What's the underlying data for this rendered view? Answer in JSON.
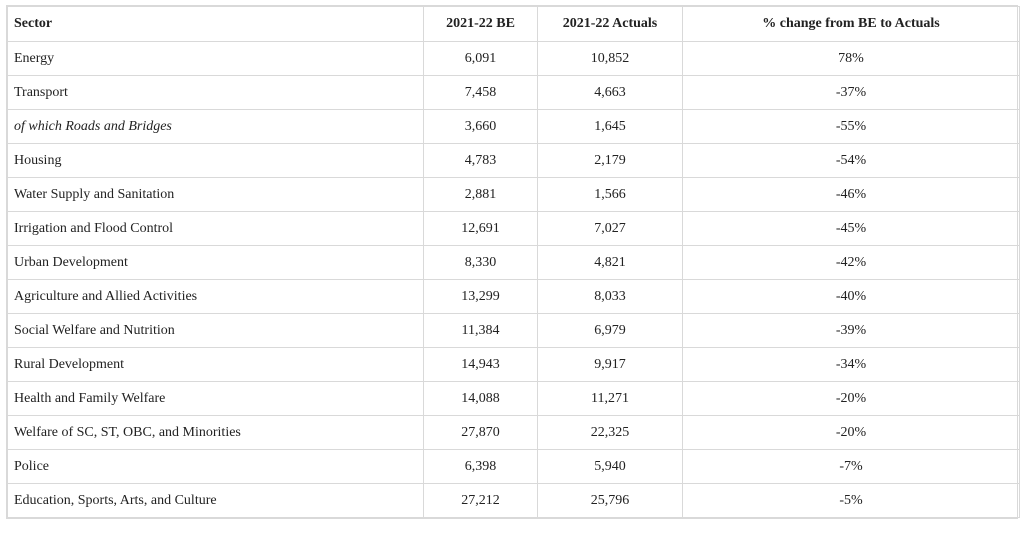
{
  "table": {
    "headers": [
      "Sector",
      "2021-22 BE",
      "2021-22 Actuals",
      "% change from BE to Actuals"
    ],
    "rows": [
      {
        "sector": "Energy",
        "be": "6,091",
        "actuals": "10,852",
        "change": "78%",
        "italic": false
      },
      {
        "sector": "Transport",
        "be": "7,458",
        "actuals": "4,663",
        "change": "-37%",
        "italic": false
      },
      {
        "sector": "of which Roads and Bridges",
        "be": "3,660",
        "actuals": "1,645",
        "change": "-55%",
        "italic": true
      },
      {
        "sector": "Housing",
        "be": "4,783",
        "actuals": "2,179",
        "change": "-54%",
        "italic": false
      },
      {
        "sector": "Water Supply and Sanitation",
        "be": "2,881",
        "actuals": "1,566",
        "change": "-46%",
        "italic": false
      },
      {
        "sector": "Irrigation and Flood Control",
        "be": "12,691",
        "actuals": "7,027",
        "change": "-45%",
        "italic": false
      },
      {
        "sector": "Urban Development",
        "be": "8,330",
        "actuals": "4,821",
        "change": "-42%",
        "italic": false
      },
      {
        "sector": "Agriculture and Allied Activities",
        "be": "13,299",
        "actuals": "8,033",
        "change": "-40%",
        "italic": false
      },
      {
        "sector": "Social Welfare and Nutrition",
        "be": "11,384",
        "actuals": "6,979",
        "change": "-39%",
        "italic": false
      },
      {
        "sector": "Rural Development",
        "be": "14,943",
        "actuals": "9,917",
        "change": "-34%",
        "italic": false
      },
      {
        "sector": "Health and Family Welfare",
        "be": "14,088",
        "actuals": "11,271",
        "change": "-20%",
        "italic": false
      },
      {
        "sector": "Welfare of SC, ST, OBC, and Minorities",
        "be": "27,870",
        "actuals": "22,325",
        "change": "-20%",
        "italic": false
      },
      {
        "sector": "Police",
        "be": "6,398",
        "actuals": "5,940",
        "change": "-7%",
        "italic": false
      },
      {
        "sector": "Education, Sports, Arts, and Culture",
        "be": "27,212",
        "actuals": "25,796",
        "change": "-5%",
        "italic": false
      }
    ]
  }
}
